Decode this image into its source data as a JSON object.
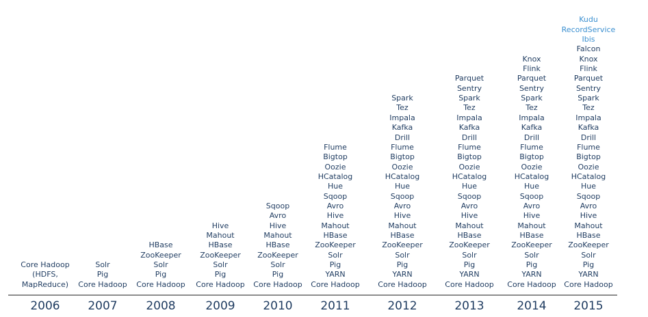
{
  "colors": {
    "text": "#1d3a5f",
    "highlight": "#3a8fd0",
    "baseline": "#8c8c8c"
  },
  "years": [
    {
      "year": "2006",
      "items": [
        "Core Hadoop",
        "(HDFS,",
        "MapReduce)"
      ],
      "new_items": []
    },
    {
      "year": "2007",
      "items": [
        "Solr",
        "Pig",
        "Core Hadoop"
      ],
      "new_items": []
    },
    {
      "year": "2008",
      "items": [
        "HBase",
        "ZooKeeper",
        "Solr",
        "Pig",
        "Core Hadoop"
      ],
      "new_items": []
    },
    {
      "year": "2009",
      "items": [
        "Hive",
        "Mahout",
        "HBase",
        "ZooKeeper",
        "Solr",
        "Pig",
        "Core Hadoop"
      ],
      "new_items": []
    },
    {
      "year": "2010",
      "items": [
        "Sqoop",
        "Avro",
        "Hive",
        "Mahout",
        "HBase",
        "ZooKeeper",
        "Solr",
        "Pig",
        "Core Hadoop"
      ],
      "new_items": []
    },
    {
      "year": "2011",
      "items": [
        "Flume",
        "Bigtop",
        "Oozie",
        "HCatalog",
        "Hue",
        "Sqoop",
        "Avro",
        "Hive",
        "Mahout",
        "HBase",
        "ZooKeeper",
        "Solr",
        "Pig",
        "YARN",
        "Core Hadoop"
      ],
      "new_items": []
    },
    {
      "year": "2012",
      "items": [
        "Spark",
        "Tez",
        "Impala",
        "Kafka",
        "Drill",
        "Flume",
        "Bigtop",
        "Oozie",
        "HCatalog",
        "Hue",
        "Sqoop",
        "Avro",
        "Hive",
        "Mahout",
        "HBase",
        "ZooKeeper",
        "Solr",
        "Pig",
        "YARN",
        "Core Hadoop"
      ],
      "new_items": []
    },
    {
      "year": "2013",
      "items": [
        "Parquet",
        "Sentry",
        "Spark",
        "Tez",
        "Impala",
        "Kafka",
        "Drill",
        "Flume",
        "Bigtop",
        "Oozie",
        "HCatalog",
        "Hue",
        "Sqoop",
        "Avro",
        "Hive",
        "Mahout",
        "HBase",
        "ZooKeeper",
        "Solr",
        "Pig",
        "YARN",
        "Core Hadoop"
      ],
      "new_items": []
    },
    {
      "year": "2014",
      "items": [
        "Knox",
        "Flink",
        "Parquet",
        "Sentry",
        "Spark",
        "Tez",
        "Impala",
        "Kafka",
        "Drill",
        "Flume",
        "Bigtop",
        "Oozie",
        "HCatalog",
        "Hue",
        "Sqoop",
        "Avro",
        "Hive",
        "Mahout",
        "HBase",
        "ZooKeeper",
        "Solr",
        "Pig",
        "YARN",
        "Core Hadoop"
      ],
      "new_items": []
    },
    {
      "year": "2015",
      "items": [
        "Falcon",
        "Knox",
        "Flink",
        "Parquet",
        "Sentry",
        "Spark",
        "Tez",
        "Impala",
        "Kafka",
        "Drill",
        "Flume",
        "Bigtop",
        "Oozie",
        "HCatalog",
        "Hue",
        "Sqoop",
        "Avro",
        "Hive",
        "Mahout",
        "HBase",
        "ZooKeeper",
        "Solr",
        "Pig",
        "YARN",
        "Core Hadoop"
      ],
      "new_items": [
        "Kudu",
        "RecordService",
        "Ibis"
      ]
    }
  ]
}
